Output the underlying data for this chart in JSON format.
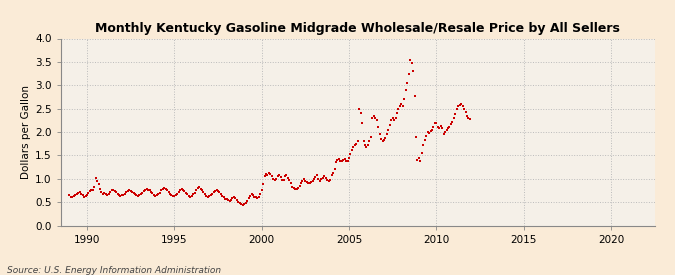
{
  "title": "Monthly Kentucky Gasoline Midgrade Wholesale/Resale Price by All Sellers",
  "ylabel": "Dollars per Gallon",
  "source": "Source: U.S. Energy Information Administration",
  "background_color": "#faebd7",
  "plot_bg_color": "#f5f0e8",
  "line_color": "#cc0000",
  "grid_color": "#bbbbbb",
  "xlim": [
    1988.5,
    2022.5
  ],
  "ylim": [
    0.0,
    4.0
  ],
  "xticks": [
    1990,
    1995,
    2000,
    2005,
    2010,
    2015,
    2020
  ],
  "yticks": [
    0.0,
    0.5,
    1.0,
    1.5,
    2.0,
    2.5,
    3.0,
    3.5,
    4.0
  ],
  "data": [
    [
      1989.0,
      0.65
    ],
    [
      1989.08,
      0.62
    ],
    [
      1989.17,
      0.6
    ],
    [
      1989.25,
      0.63
    ],
    [
      1989.33,
      0.66
    ],
    [
      1989.42,
      0.68
    ],
    [
      1989.5,
      0.7
    ],
    [
      1989.58,
      0.72
    ],
    [
      1989.67,
      0.68
    ],
    [
      1989.75,
      0.65
    ],
    [
      1989.83,
      0.62
    ],
    [
      1989.92,
      0.64
    ],
    [
      1990.0,
      0.66
    ],
    [
      1990.08,
      0.7
    ],
    [
      1990.17,
      0.74
    ],
    [
      1990.25,
      0.75
    ],
    [
      1990.33,
      0.76
    ],
    [
      1990.42,
      0.82
    ],
    [
      1990.5,
      1.01
    ],
    [
      1990.58,
      0.96
    ],
    [
      1990.67,
      0.88
    ],
    [
      1990.75,
      0.78
    ],
    [
      1990.83,
      0.72
    ],
    [
      1990.92,
      0.68
    ],
    [
      1991.0,
      0.7
    ],
    [
      1991.08,
      0.68
    ],
    [
      1991.17,
      0.65
    ],
    [
      1991.25,
      0.68
    ],
    [
      1991.33,
      0.72
    ],
    [
      1991.42,
      0.75
    ],
    [
      1991.5,
      0.76
    ],
    [
      1991.58,
      0.74
    ],
    [
      1991.67,
      0.71
    ],
    [
      1991.75,
      0.68
    ],
    [
      1991.83,
      0.65
    ],
    [
      1991.92,
      0.63
    ],
    [
      1992.0,
      0.65
    ],
    [
      1992.08,
      0.66
    ],
    [
      1992.17,
      0.68
    ],
    [
      1992.25,
      0.72
    ],
    [
      1992.33,
      0.74
    ],
    [
      1992.42,
      0.76
    ],
    [
      1992.5,
      0.74
    ],
    [
      1992.58,
      0.72
    ],
    [
      1992.67,
      0.69
    ],
    [
      1992.75,
      0.67
    ],
    [
      1992.83,
      0.65
    ],
    [
      1992.92,
      0.64
    ],
    [
      1993.0,
      0.66
    ],
    [
      1993.08,
      0.68
    ],
    [
      1993.17,
      0.7
    ],
    [
      1993.25,
      0.74
    ],
    [
      1993.33,
      0.76
    ],
    [
      1993.42,
      0.78
    ],
    [
      1993.5,
      0.77
    ],
    [
      1993.58,
      0.75
    ],
    [
      1993.67,
      0.72
    ],
    [
      1993.75,
      0.69
    ],
    [
      1993.83,
      0.66
    ],
    [
      1993.92,
      0.64
    ],
    [
      1994.0,
      0.66
    ],
    [
      1994.08,
      0.68
    ],
    [
      1994.17,
      0.7
    ],
    [
      1994.25,
      0.75
    ],
    [
      1994.33,
      0.78
    ],
    [
      1994.42,
      0.8
    ],
    [
      1994.5,
      0.79
    ],
    [
      1994.58,
      0.76
    ],
    [
      1994.67,
      0.72
    ],
    [
      1994.75,
      0.68
    ],
    [
      1994.83,
      0.65
    ],
    [
      1994.92,
      0.63
    ],
    [
      1995.0,
      0.64
    ],
    [
      1995.08,
      0.66
    ],
    [
      1995.17,
      0.68
    ],
    [
      1995.25,
      0.71
    ],
    [
      1995.33,
      0.75
    ],
    [
      1995.42,
      0.78
    ],
    [
      1995.5,
      0.76
    ],
    [
      1995.58,
      0.74
    ],
    [
      1995.67,
      0.7
    ],
    [
      1995.75,
      0.67
    ],
    [
      1995.83,
      0.63
    ],
    [
      1995.92,
      0.61
    ],
    [
      1996.0,
      0.63
    ],
    [
      1996.08,
      0.67
    ],
    [
      1996.17,
      0.7
    ],
    [
      1996.25,
      0.76
    ],
    [
      1996.33,
      0.8
    ],
    [
      1996.42,
      0.82
    ],
    [
      1996.5,
      0.79
    ],
    [
      1996.58,
      0.76
    ],
    [
      1996.67,
      0.72
    ],
    [
      1996.75,
      0.68
    ],
    [
      1996.83,
      0.64
    ],
    [
      1996.92,
      0.62
    ],
    [
      1997.0,
      0.64
    ],
    [
      1997.08,
      0.66
    ],
    [
      1997.17,
      0.68
    ],
    [
      1997.25,
      0.72
    ],
    [
      1997.33,
      0.74
    ],
    [
      1997.42,
      0.76
    ],
    [
      1997.5,
      0.74
    ],
    [
      1997.58,
      0.72
    ],
    [
      1997.67,
      0.68
    ],
    [
      1997.75,
      0.64
    ],
    [
      1997.83,
      0.6
    ],
    [
      1997.92,
      0.57
    ],
    [
      1998.0,
      0.56
    ],
    [
      1998.08,
      0.54
    ],
    [
      1998.17,
      0.53
    ],
    [
      1998.25,
      0.55
    ],
    [
      1998.33,
      0.58
    ],
    [
      1998.42,
      0.6
    ],
    [
      1998.5,
      0.58
    ],
    [
      1998.58,
      0.55
    ],
    [
      1998.67,
      0.51
    ],
    [
      1998.75,
      0.48
    ],
    [
      1998.83,
      0.45
    ],
    [
      1998.92,
      0.43
    ],
    [
      1999.0,
      0.46
    ],
    [
      1999.08,
      0.48
    ],
    [
      1999.17,
      0.52
    ],
    [
      1999.25,
      0.59
    ],
    [
      1999.33,
      0.64
    ],
    [
      1999.42,
      0.67
    ],
    [
      1999.5,
      0.65
    ],
    [
      1999.58,
      0.62
    ],
    [
      1999.67,
      0.6
    ],
    [
      1999.75,
      0.58
    ],
    [
      1999.83,
      0.62
    ],
    [
      1999.92,
      0.68
    ],
    [
      2000.0,
      0.75
    ],
    [
      2000.08,
      0.88
    ],
    [
      2000.17,
      1.05
    ],
    [
      2000.25,
      1.1
    ],
    [
      2000.33,
      1.07
    ],
    [
      2000.42,
      1.12
    ],
    [
      2000.5,
      1.1
    ],
    [
      2000.58,
      1.05
    ],
    [
      2000.67,
      1.0
    ],
    [
      2000.75,
      0.98
    ],
    [
      2000.83,
      1.0
    ],
    [
      2000.92,
      1.05
    ],
    [
      2001.0,
      1.07
    ],
    [
      2001.08,
      1.03
    ],
    [
      2001.17,
      0.97
    ],
    [
      2001.25,
      0.98
    ],
    [
      2001.33,
      1.05
    ],
    [
      2001.42,
      1.08
    ],
    [
      2001.5,
      1.02
    ],
    [
      2001.58,
      0.98
    ],
    [
      2001.67,
      0.9
    ],
    [
      2001.75,
      0.82
    ],
    [
      2001.83,
      0.8
    ],
    [
      2001.92,
      0.78
    ],
    [
      2002.0,
      0.78
    ],
    [
      2002.08,
      0.8
    ],
    [
      2002.17,
      0.84
    ],
    [
      2002.25,
      0.9
    ],
    [
      2002.33,
      0.95
    ],
    [
      2002.42,
      1.0
    ],
    [
      2002.5,
      0.96
    ],
    [
      2002.58,
      0.92
    ],
    [
      2002.67,
      0.9
    ],
    [
      2002.75,
      0.9
    ],
    [
      2002.83,
      0.92
    ],
    [
      2002.92,
      0.95
    ],
    [
      2003.0,
      1.0
    ],
    [
      2003.08,
      1.04
    ],
    [
      2003.17,
      1.08
    ],
    [
      2003.25,
      1.0
    ],
    [
      2003.33,
      0.96
    ],
    [
      2003.42,
      1.0
    ],
    [
      2003.5,
      1.02
    ],
    [
      2003.58,
      1.05
    ],
    [
      2003.67,
      1.02
    ],
    [
      2003.75,
      0.98
    ],
    [
      2003.83,
      0.95
    ],
    [
      2003.92,
      0.98
    ],
    [
      2004.0,
      1.08
    ],
    [
      2004.08,
      1.12
    ],
    [
      2004.17,
      1.2
    ],
    [
      2004.25,
      1.35
    ],
    [
      2004.33,
      1.4
    ],
    [
      2004.42,
      1.42
    ],
    [
      2004.5,
      1.38
    ],
    [
      2004.58,
      1.38
    ],
    [
      2004.67,
      1.4
    ],
    [
      2004.75,
      1.42
    ],
    [
      2004.83,
      1.38
    ],
    [
      2004.92,
      1.38
    ],
    [
      2005.0,
      1.45
    ],
    [
      2005.08,
      1.52
    ],
    [
      2005.17,
      1.62
    ],
    [
      2005.25,
      1.68
    ],
    [
      2005.33,
      1.72
    ],
    [
      2005.42,
      1.75
    ],
    [
      2005.5,
      1.8
    ],
    [
      2005.58,
      2.5
    ],
    [
      2005.67,
      2.4
    ],
    [
      2005.75,
      2.2
    ],
    [
      2005.83,
      1.8
    ],
    [
      2005.92,
      1.72
    ],
    [
      2006.0,
      1.68
    ],
    [
      2006.08,
      1.72
    ],
    [
      2006.17,
      1.8
    ],
    [
      2006.25,
      1.9
    ],
    [
      2006.33,
      2.3
    ],
    [
      2006.42,
      2.35
    ],
    [
      2006.5,
      2.3
    ],
    [
      2006.58,
      2.25
    ],
    [
      2006.67,
      2.1
    ],
    [
      2006.75,
      1.95
    ],
    [
      2006.83,
      1.85
    ],
    [
      2006.92,
      1.8
    ],
    [
      2007.0,
      1.82
    ],
    [
      2007.08,
      1.88
    ],
    [
      2007.17,
      1.95
    ],
    [
      2007.25,
      2.05
    ],
    [
      2007.33,
      2.15
    ],
    [
      2007.42,
      2.25
    ],
    [
      2007.5,
      2.3
    ],
    [
      2007.58,
      2.25
    ],
    [
      2007.67,
      2.3
    ],
    [
      2007.75,
      2.4
    ],
    [
      2007.83,
      2.5
    ],
    [
      2007.92,
      2.55
    ],
    [
      2008.0,
      2.6
    ],
    [
      2008.08,
      2.55
    ],
    [
      2008.17,
      2.7
    ],
    [
      2008.25,
      2.9
    ],
    [
      2008.33,
      3.05
    ],
    [
      2008.42,
      3.25
    ],
    [
      2008.5,
      3.55
    ],
    [
      2008.58,
      3.48
    ],
    [
      2008.67,
      3.3
    ],
    [
      2008.75,
      2.78
    ],
    [
      2008.83,
      1.9
    ],
    [
      2008.92,
      1.4
    ],
    [
      2009.0,
      1.44
    ],
    [
      2009.08,
      1.38
    ],
    [
      2009.17,
      1.55
    ],
    [
      2009.25,
      1.72
    ],
    [
      2009.33,
      1.82
    ],
    [
      2009.42,
      1.92
    ],
    [
      2009.5,
      2.0
    ],
    [
      2009.58,
      1.98
    ],
    [
      2009.67,
      2.02
    ],
    [
      2009.75,
      2.05
    ],
    [
      2009.83,
      2.1
    ],
    [
      2009.92,
      2.2
    ],
    [
      2010.0,
      2.2
    ],
    [
      2010.08,
      2.1
    ],
    [
      2010.17,
      2.08
    ],
    [
      2010.25,
      2.12
    ],
    [
      2010.33,
      2.08
    ],
    [
      2010.42,
      1.95
    ],
    [
      2010.5,
      2.0
    ],
    [
      2010.58,
      2.05
    ],
    [
      2010.67,
      2.08
    ],
    [
      2010.75,
      2.1
    ],
    [
      2010.83,
      2.18
    ],
    [
      2010.92,
      2.22
    ],
    [
      2011.0,
      2.3
    ],
    [
      2011.08,
      2.38
    ],
    [
      2011.17,
      2.5
    ],
    [
      2011.25,
      2.55
    ],
    [
      2011.33,
      2.58
    ],
    [
      2011.42,
      2.6
    ],
    [
      2011.5,
      2.55
    ],
    [
      2011.58,
      2.5
    ],
    [
      2011.67,
      2.42
    ],
    [
      2011.75,
      2.35
    ],
    [
      2011.83,
      2.3
    ],
    [
      2011.92,
      2.28
    ]
  ]
}
